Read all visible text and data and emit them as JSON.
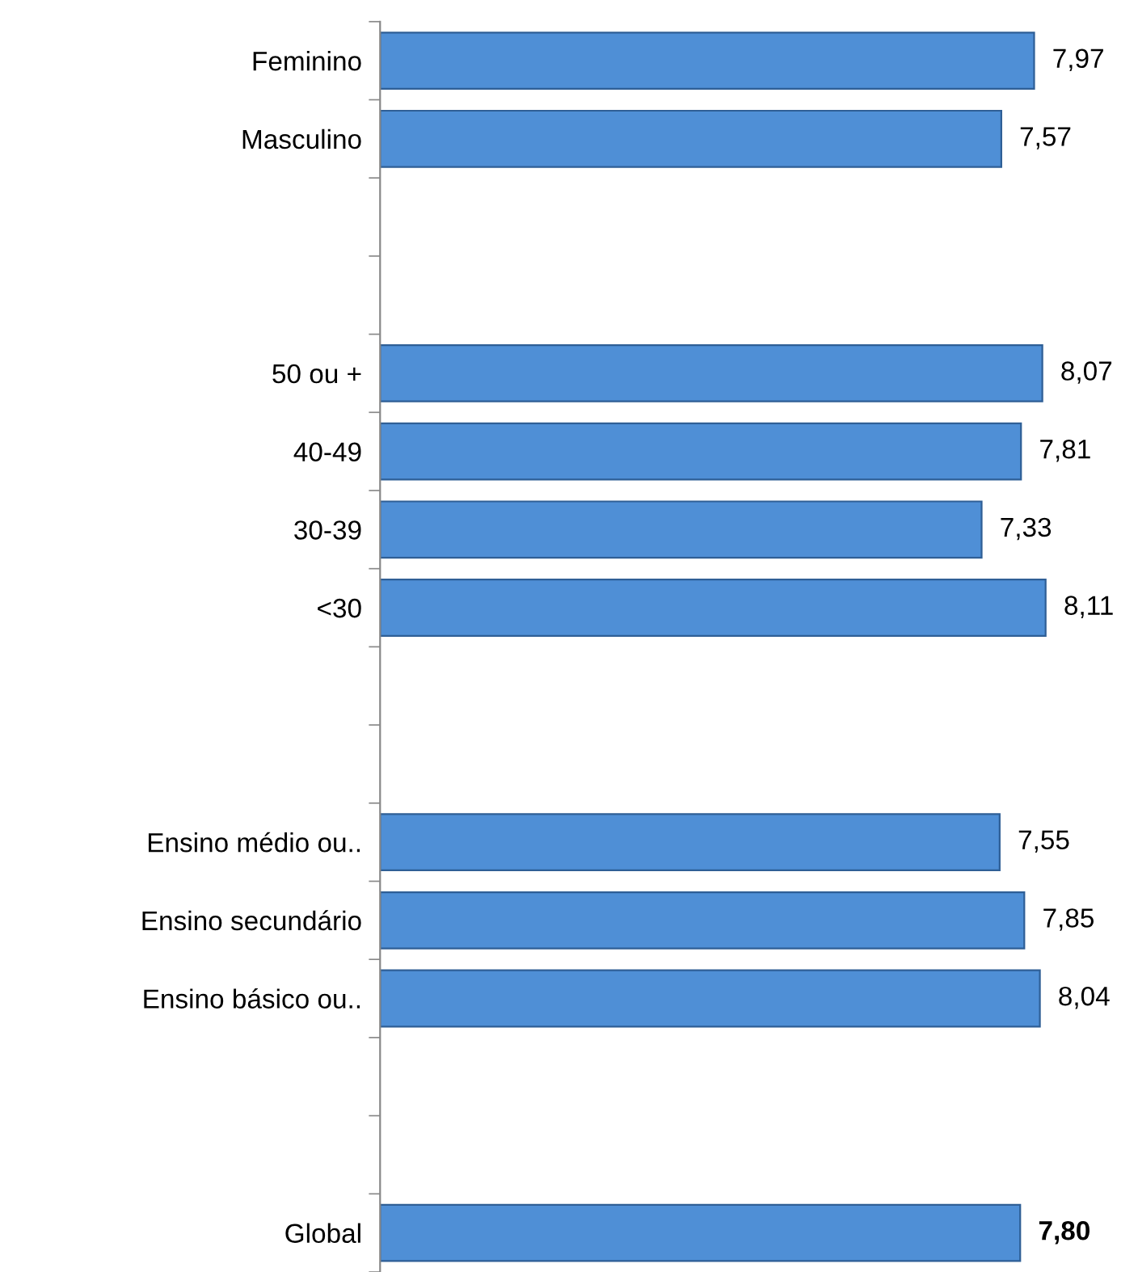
{
  "chart_data": {
    "type": "bar",
    "orientation": "horizontal",
    "categories": [
      "Feminino",
      "Masculino",
      null,
      null,
      "50 ou +",
      "40-49",
      "30-39",
      "<30",
      null,
      null,
      "Ensino médio ou..",
      "Ensino secundário",
      "Ensino básico ou..",
      null,
      null,
      "Global"
    ],
    "values": [
      7.97,
      7.57,
      null,
      null,
      8.07,
      7.81,
      7.33,
      8.11,
      null,
      null,
      7.55,
      7.85,
      8.04,
      null,
      null,
      7.8
    ],
    "value_labels": [
      "7,97",
      "7,57",
      null,
      null,
      "8,07",
      "7,81",
      "7,33",
      "8,11",
      null,
      null,
      "7,55",
      "7,85",
      "8,04",
      null,
      null,
      "7,80"
    ],
    "color": "#4f8fd6",
    "tick_labels": "y",
    "grid": false,
    "legend": false
  }
}
